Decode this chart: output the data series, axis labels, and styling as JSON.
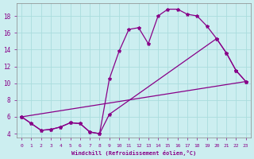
{
  "xlabel": "Windchill (Refroidissement éolien,°C)",
  "ylabel": "",
  "bg_color": "#cceef0",
  "line_color": "#880088",
  "grid_color": "#aadddd",
  "xlim": [
    -0.5,
    23.5
  ],
  "ylim": [
    3.5,
    19.5
  ],
  "xticks": [
    0,
    1,
    2,
    3,
    4,
    5,
    6,
    7,
    8,
    9,
    10,
    11,
    12,
    13,
    14,
    15,
    16,
    17,
    18,
    19,
    20,
    21,
    22,
    23
  ],
  "yticks": [
    4,
    6,
    8,
    10,
    12,
    14,
    16,
    18
  ],
  "line1_x": [
    0,
    1,
    2,
    3,
    4,
    5,
    6,
    7,
    8,
    9,
    10,
    11,
    12,
    13,
    14,
    15,
    16,
    17,
    18,
    19,
    20,
    21,
    22,
    23
  ],
  "line1_y": [
    6.0,
    5.2,
    4.4,
    4.5,
    4.8,
    5.3,
    5.2,
    4.2,
    4.0,
    10.5,
    13.8,
    16.4,
    16.6,
    14.7,
    18.0,
    18.8,
    18.8,
    18.2,
    18.0,
    16.8,
    15.3,
    13.6,
    11.5,
    10.2
  ],
  "line2_x": [
    0,
    1,
    2,
    3,
    4,
    5,
    6,
    7,
    8,
    9,
    20,
    21,
    22,
    23
  ],
  "line2_y": [
    6.0,
    5.2,
    4.4,
    4.5,
    4.8,
    5.3,
    5.2,
    4.2,
    4.0,
    6.3,
    15.3,
    13.6,
    11.5,
    10.2
  ],
  "line3_x": [
    0,
    23
  ],
  "line3_y": [
    6.0,
    10.2
  ],
  "marker": "*",
  "markersize": 3,
  "linewidth": 0.9
}
